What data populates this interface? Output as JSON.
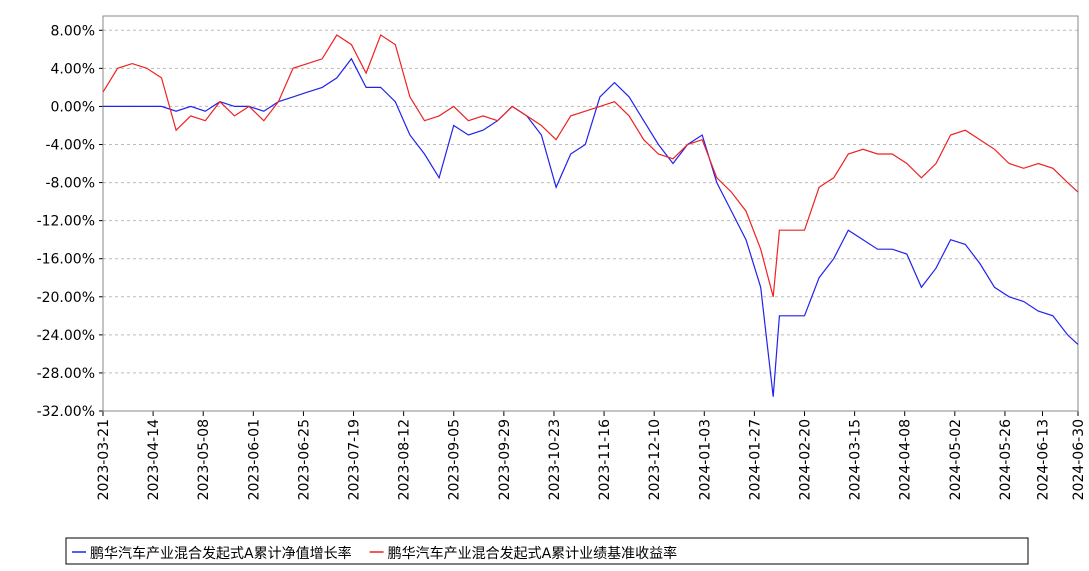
{
  "chart_data": {
    "type": "line",
    "x": [
      "2023-03-21",
      "2023-03-28",
      "2023-04-04",
      "2023-04-11",
      "2023-04-18",
      "2023-04-25",
      "2023-05-02",
      "2023-05-09",
      "2023-05-16",
      "2023-05-23",
      "2023-05-30",
      "2023-06-06",
      "2023-06-13",
      "2023-06-20",
      "2023-06-27",
      "2023-07-04",
      "2023-07-11",
      "2023-07-18",
      "2023-07-25",
      "2023-08-01",
      "2023-08-08",
      "2023-08-15",
      "2023-08-22",
      "2023-08-29",
      "2023-09-05",
      "2023-09-12",
      "2023-09-19",
      "2023-09-26",
      "2023-10-03",
      "2023-10-10",
      "2023-10-17",
      "2023-10-24",
      "2023-10-31",
      "2023-11-07",
      "2023-11-14",
      "2023-11-21",
      "2023-11-28",
      "2023-12-05",
      "2023-12-12",
      "2023-12-19",
      "2023-12-26",
      "2024-01-02",
      "2024-01-09",
      "2024-01-16",
      "2024-01-23",
      "2024-01-30",
      "2024-02-05",
      "2024-02-08",
      "2024-02-20",
      "2024-02-27",
      "2024-03-05",
      "2024-03-12",
      "2024-03-19",
      "2024-03-26",
      "2024-04-02",
      "2024-04-09",
      "2024-04-16",
      "2024-04-23",
      "2024-04-30",
      "2024-05-07",
      "2024-05-14",
      "2024-05-21",
      "2024-05-28",
      "2024-06-04",
      "2024-06-11",
      "2024-06-18",
      "2024-06-25",
      "2024-06-30"
    ],
    "series": [
      {
        "name": "鹏华汽车产业混合发起式A累计净值增长率",
        "color": "#2222ee",
        "values": [
          0,
          0,
          0,
          0,
          0,
          -0.5,
          0,
          -0.5,
          0.5,
          0,
          0,
          -0.5,
          0.5,
          1,
          1.5,
          2,
          3,
          5,
          2,
          2,
          0.5,
          -3,
          -5,
          -7.5,
          -2,
          -3,
          -2.5,
          -1.5,
          0,
          -1,
          -3,
          -8.5,
          -5,
          -4,
          1,
          2.5,
          1,
          -1.5,
          -4,
          -6,
          -4,
          -3,
          -8,
          -11,
          -14,
          -19,
          -30.5,
          -22,
          -22,
          -18,
          -16,
          -13,
          -14,
          -15,
          -15,
          -15.5,
          -19,
          -17,
          -14,
          -14.5,
          -16.5,
          -19,
          -20,
          -20.5,
          -21.5,
          -22,
          -24,
          -25
        ]
      },
      {
        "name": "鹏华汽车产业混合发起式A累计业绩基准收益率",
        "color": "#ee2222",
        "values": [
          1.5,
          4,
          4.5,
          4,
          3,
          -2.5,
          -1,
          -1.5,
          0.5,
          -1,
          0,
          -1.5,
          0.5,
          4,
          4.5,
          5,
          7.5,
          6.5,
          3.5,
          7.5,
          6.5,
          1,
          -1.5,
          -1,
          0,
          -1.5,
          -1,
          -1.5,
          0,
          -1,
          -2,
          -3.5,
          -1,
          -0.5,
          0,
          0.5,
          -1,
          -3.5,
          -5,
          -5.5,
          -4,
          -3.5,
          -7.5,
          -9,
          -11,
          -15,
          -20,
          -13,
          -13,
          -8.5,
          -7.5,
          -5,
          -4.5,
          -5,
          -5,
          -6,
          -7.5,
          -6,
          -3,
          -2.5,
          -3.5,
          -4.5,
          -6,
          -6.5,
          -6,
          -6.5,
          -8,
          -9
        ]
      }
    ],
    "xlim": [
      "2023-03-21",
      "2024-06-30"
    ],
    "xticks": [
      "2023-03-21",
      "2023-04-14",
      "2023-05-08",
      "2023-06-01",
      "2023-06-25",
      "2023-07-19",
      "2023-08-12",
      "2023-09-05",
      "2023-09-29",
      "2023-10-23",
      "2023-11-16",
      "2023-12-10",
      "2024-01-03",
      "2024-01-27",
      "2024-02-20",
      "2024-03-15",
      "2024-04-08",
      "2024-05-02",
      "2024-05-26",
      "2024-06-13",
      "2024-06-30"
    ],
    "ylim": [
      -32,
      9.5
    ],
    "yticks": [
      {
        "value": 8,
        "label": "8.00%"
      },
      {
        "value": 4,
        "label": "4.00%"
      },
      {
        "value": 0,
        "label": "0.00%"
      },
      {
        "value": -4,
        "label": "-4.00%"
      },
      {
        "value": -8,
        "label": "-8.00%"
      },
      {
        "value": -12,
        "label": "-12.00%"
      },
      {
        "value": -16,
        "label": "-16.00%"
      },
      {
        "value": -20,
        "label": "-20.00%"
      },
      {
        "value": -24,
        "label": "-24.00%"
      },
      {
        "value": -28,
        "label": "-28.00%"
      },
      {
        "value": -32,
        "label": "-32.00%"
      }
    ],
    "grid": true
  }
}
